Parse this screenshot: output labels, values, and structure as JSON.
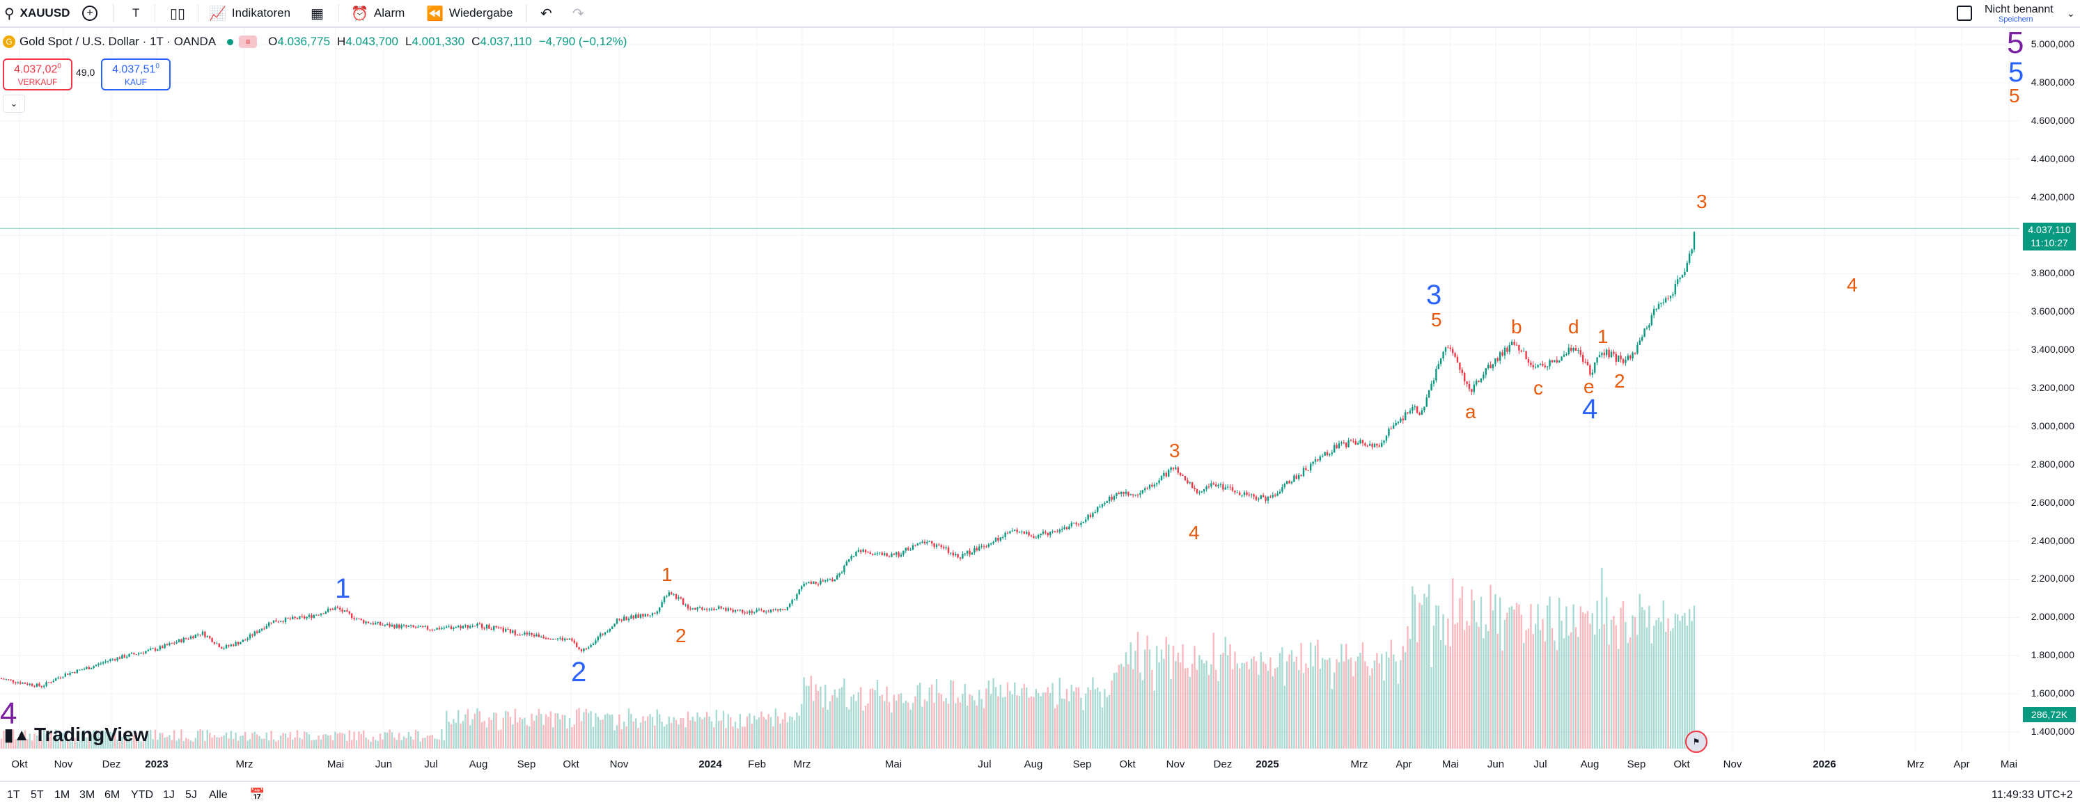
{
  "toolbar": {
    "symbol": "XAUUSD",
    "interval": "T",
    "indicators_label": "Indikatoren",
    "alarm_label": "Alarm",
    "replay_label": "Wiedergabe",
    "layout_title": "Nicht benannt",
    "save_label": "Speichern"
  },
  "legend": {
    "title": "Gold Spot / U.S. Dollar · 1T · OANDA",
    "o_label": "O",
    "o_value": "4.036,775",
    "h_label": "H",
    "h_value": "4.043,700",
    "l_label": "L",
    "l_value": "4.001,330",
    "c_label": "C",
    "c_value": "4.037,110",
    "change": "−4,790 (−0,12%)",
    "sell_price": "4.037,02",
    "sell_price_sup": "0",
    "sell_label": "VERKAUF",
    "spread": "49,0",
    "buy_price": "4.037,51",
    "buy_price_sup": "0",
    "buy_label": "KAUF"
  },
  "price_axis": {
    "ticks": [
      "5.000,000",
      "4.800,000",
      "4.600,000",
      "4.400,000",
      "4.200,000",
      "4.000,000",
      "3.800,000",
      "3.600,000",
      "3.400,000",
      "3.200,000",
      "3.000,000",
      "2.800,000",
      "2.600,000",
      "2.400,000",
      "2.200,000",
      "2.000,000",
      "1.800,000",
      "1.600,000",
      "1.400,000"
    ],
    "last_price": "4.037,110",
    "countdown": "11:10:27",
    "volume_value": "286,72K"
  },
  "time_axis": {
    "ticks": [
      "Okt",
      "Nov",
      "Dez",
      "2023",
      "Mrz",
      "Mai",
      "Jun",
      "Jul",
      "Aug",
      "Sep",
      "Okt",
      "Nov",
      "2024",
      "Feb",
      "Mrz",
      "Mai",
      "Jul",
      "Aug",
      "Sep",
      "Okt",
      "Nov",
      "Dez",
      "2025",
      "Mrz",
      "Apr",
      "Mai",
      "Jun",
      "Jul",
      "Aug",
      "Sep",
      "Okt",
      "Nov",
      "2026",
      "Mrz",
      "Apr",
      "Mai"
    ]
  },
  "ranges": [
    "1T",
    "5T",
    "1M",
    "3M",
    "6M",
    "YTD",
    "1J",
    "5J",
    "Alle"
  ],
  "clock": "11:49:33 UTC+2",
  "watermark": "TradingView",
  "wave_labels": {
    "p4": "4",
    "p5": "5",
    "b1": "1",
    "b2": "2",
    "b3": "3",
    "b4": "4",
    "b5": "5",
    "o1a": "1",
    "o2a": "2",
    "o3a": "3",
    "o4a": "4",
    "o5a": "5",
    "oa": "a",
    "ob": "b",
    "oc": "c",
    "od": "d",
    "oe": "e",
    "o1b": "1",
    "o2b": "2",
    "o3b": "3",
    "o4b": "4",
    "o5b": "5"
  },
  "colors": {
    "up": "#089981",
    "down": "#f23645",
    "wave_blue": "#2962ff",
    "wave_orange": "#e8590c",
    "wave_purple": "#7b1fa2"
  },
  "chart_data": {
    "type": "candlestick",
    "price_anchors": [
      [
        "Okt 2022",
        1660
      ],
      [
        "Nov 2022",
        1700
      ],
      [
        "Dez 2022",
        1780
      ],
      [
        "2023",
        1830
      ],
      [
        "Mrz 2023",
        1930
      ],
      [
        "Mai 2023",
        2050
      ],
      [
        "Jun 2023",
        1960
      ],
      [
        "Jul 2023",
        1940
      ],
      [
        "Aug 2023",
        1920
      ],
      [
        "Sep 2023",
        1920
      ],
      [
        "Okt 2023",
        1820
      ],
      [
        "Nov 2023",
        1990
      ],
      [
        "2024",
        2050
      ],
      [
        "Feb 2024",
        2030
      ],
      [
        "Mrz 2024",
        2170
      ],
      [
        "Mai 2024",
        2320
      ],
      [
        "Jul 2024",
        2380
      ],
      [
        "Aug 2024",
        2460
      ],
      [
        "Sep 2024",
        2500
      ],
      [
        "Okt 2024",
        2660
      ],
      [
        "Nov 2024",
        2560
      ],
      [
        "Dez 2024",
        2650
      ],
      [
        "2025",
        2650
      ],
      [
        "Mrz 2025",
        2920
      ],
      [
        "Apr 2025",
        3300
      ],
      [
        "Mai 2025",
        3150
      ],
      [
        "Jun 2025",
        3350
      ],
      [
        "Jul 2025",
        3340
      ],
      [
        "Aug 2025",
        3360
      ],
      [
        "Sep 2025",
        3600
      ],
      [
        "Okt 2025",
        4037
      ]
    ],
    "volume_peaks": [
      [
        "Aug 2025",
        "max"
      ]
    ],
    "ylim": [
      1400,
      5000
    ]
  }
}
